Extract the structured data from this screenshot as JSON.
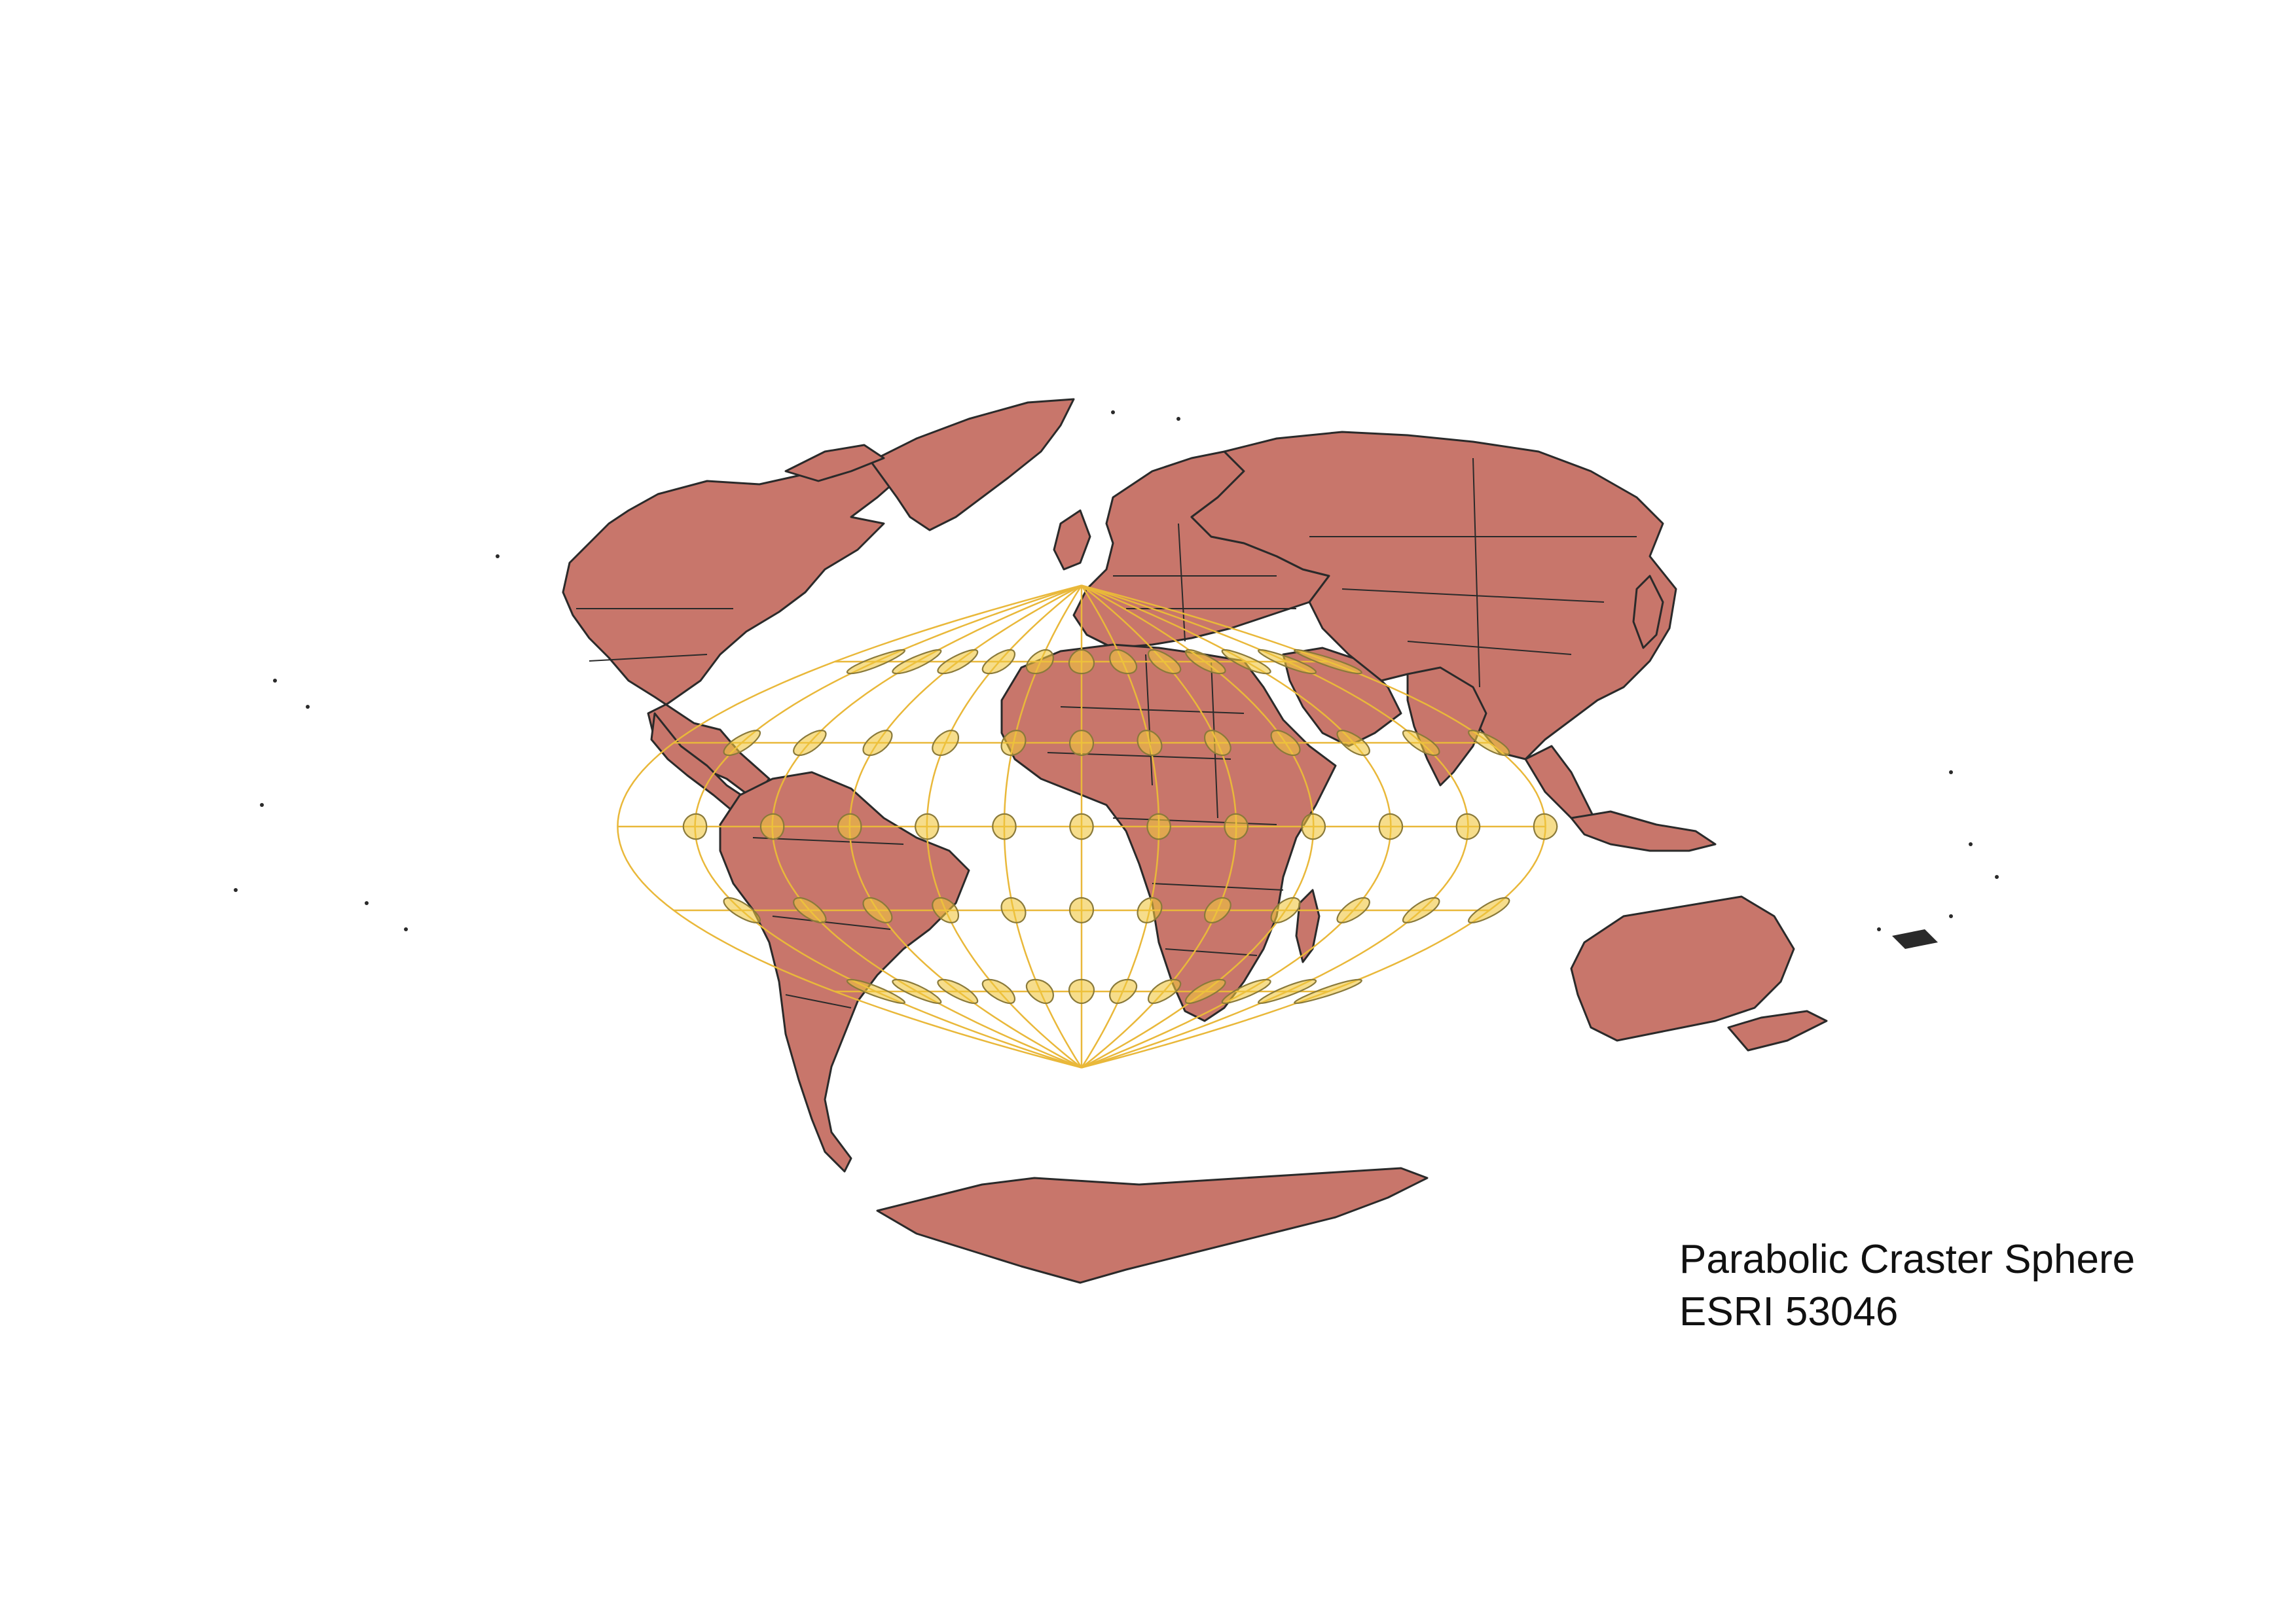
{
  "caption": {
    "line1": "Parabolic Craster Sphere",
    "line2": "ESRI 53046"
  },
  "colors": {
    "land": "#c8766b",
    "border": "#2a2a2a",
    "graticule": "#e9b83a",
    "tissot_fill": "#f0c73e",
    "background": "#ffffff"
  },
  "projection": "Parabolic Craster (Craster parabolic)",
  "graticule": {
    "meridian_step_deg": 30,
    "parallel_step_deg": 30
  },
  "tissot_indicatrix": {
    "lon_step_deg": 30,
    "lat_rows_deg": [
      60,
      30,
      0,
      -30,
      -60
    ]
  }
}
